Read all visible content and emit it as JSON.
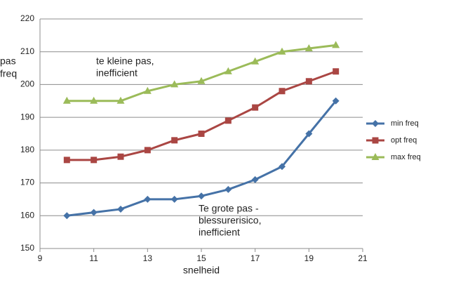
{
  "chart_data": {
    "type": "line",
    "y_label_lines": [
      "pas",
      "freq"
    ],
    "x_label": "snelheid",
    "x": [
      10,
      11,
      12,
      13,
      14,
      15,
      16,
      17,
      18,
      19,
      20
    ],
    "series": [
      {
        "name": "min freq",
        "color": "#4572a7",
        "marker": "diamond",
        "values": [
          160,
          161,
          162,
          165,
          165,
          166,
          168,
          171,
          175,
          185,
          195
        ]
      },
      {
        "name": "opt freq",
        "color": "#aa4643",
        "marker": "square",
        "values": [
          177,
          177,
          178,
          180,
          183,
          185,
          189,
          193,
          198,
          201,
          204
        ]
      },
      {
        "name": "max freq",
        "color": "#9bbb59",
        "marker": "triangle",
        "values": [
          195,
          195,
          195,
          198,
          200,
          201,
          204,
          207,
          210,
          211,
          212
        ]
      }
    ],
    "xlim": [
      9,
      21
    ],
    "xticks": [
      9,
      11,
      13,
      15,
      17,
      19,
      21
    ],
    "ylim": [
      150,
      220
    ],
    "yticks": [
      150,
      160,
      170,
      180,
      190,
      200,
      210,
      220
    ],
    "grid": true,
    "legend": "right",
    "annotations": [
      {
        "lines": [
          "te kleine pas,",
          "inefficient"
        ]
      },
      {
        "lines": [
          "Te grote pas -",
          "blessurerisico,",
          "inefficient"
        ]
      }
    ]
  }
}
